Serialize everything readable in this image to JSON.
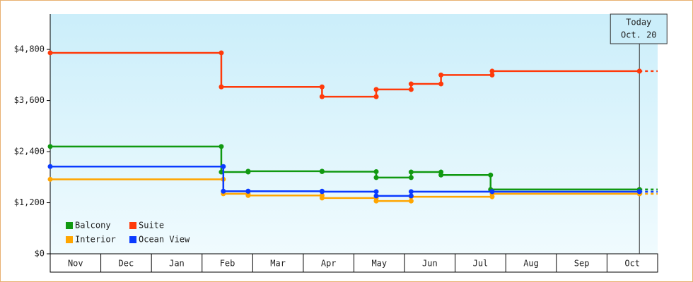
{
  "chart_data": {
    "type": "step-line",
    "categories": [
      "Nov",
      "Dec",
      "Jan",
      "Feb",
      "Mar",
      "Apr",
      "May",
      "Jun",
      "Jul",
      "Aug",
      "Sep",
      "Oct"
    ],
    "xlim": [
      0,
      12
    ],
    "ylim": [
      0,
      5630
    ],
    "yticks": [
      {
        "value": 0,
        "label": "$0"
      },
      {
        "value": 1200,
        "label": "$1,200"
      },
      {
        "value": 2400,
        "label": "$2,400"
      },
      {
        "value": 3600,
        "label": "$3,600"
      },
      {
        "value": 4800,
        "label": "$4,800"
      }
    ],
    "legend": "lower left",
    "today": {
      "x": 11.64,
      "label": [
        "Today",
        "Oct. 20"
      ]
    },
    "series": [
      {
        "name": "Balcony",
        "color": "#119911",
        "x": [
          0,
          3.38,
          3.91,
          5.37,
          6.44,
          7.13,
          7.72,
          8.7,
          11.64
        ],
        "values": [
          2520,
          1920,
          1940,
          1930,
          1790,
          1920,
          1850,
          1510,
          1510
        ]
      },
      {
        "name": "Suite",
        "color": "#ff3a0a",
        "x": [
          0,
          3.38,
          5.37,
          6.44,
          7.13,
          7.72,
          8.73,
          11.64
        ],
        "values": [
          4720,
          3920,
          3690,
          3860,
          3990,
          4200,
          4290,
          4290
        ]
      },
      {
        "name": "Interior",
        "color": "#ffa500",
        "x": [
          0,
          3.42,
          3.91,
          5.37,
          6.44,
          7.13,
          8.73,
          11.64
        ],
        "values": [
          1750,
          1410,
          1370,
          1310,
          1240,
          1340,
          1410,
          1410
        ]
      },
      {
        "name": "Ocean View",
        "color": "#0a3aff",
        "x": [
          0,
          3.42,
          3.91,
          5.37,
          6.44,
          7.13,
          8.73,
          11.64
        ],
        "values": [
          2050,
          1470,
          1470,
          1460,
          1360,
          1460,
          1460,
          1460
        ]
      }
    ]
  }
}
